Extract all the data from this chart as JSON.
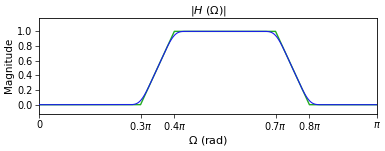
{
  "title": "|$H$ ($\\Omega$)|",
  "xlabel": "$\\Omega$ (rad)",
  "ylabel": "Magnitude",
  "xlim": [
    0,
    1.0
  ],
  "ylim": [
    -0.12,
    1.18
  ],
  "yticks": [
    0.0,
    0.2,
    0.4,
    0.6,
    0.8,
    1.0
  ],
  "xticks": [
    0,
    0.3,
    0.4,
    0.7,
    0.8,
    1.0
  ],
  "xticklabels": [
    "0",
    "0.3$\\pi$",
    "0.4$\\pi$",
    "0.7$\\pi$",
    "0.8$\\pi$",
    "$\\pi$"
  ],
  "ideal_color": "#22aa22",
  "filter_color": "#1a1aee",
  "passband_low": 0.4,
  "passband_high": 0.7,
  "trans1_low": 0.35,
  "trans1_high": 0.4,
  "trans2_low": 0.7,
  "trans2_high": 0.75,
  "figsize": [
    3.85,
    1.51
  ],
  "dpi": 100
}
